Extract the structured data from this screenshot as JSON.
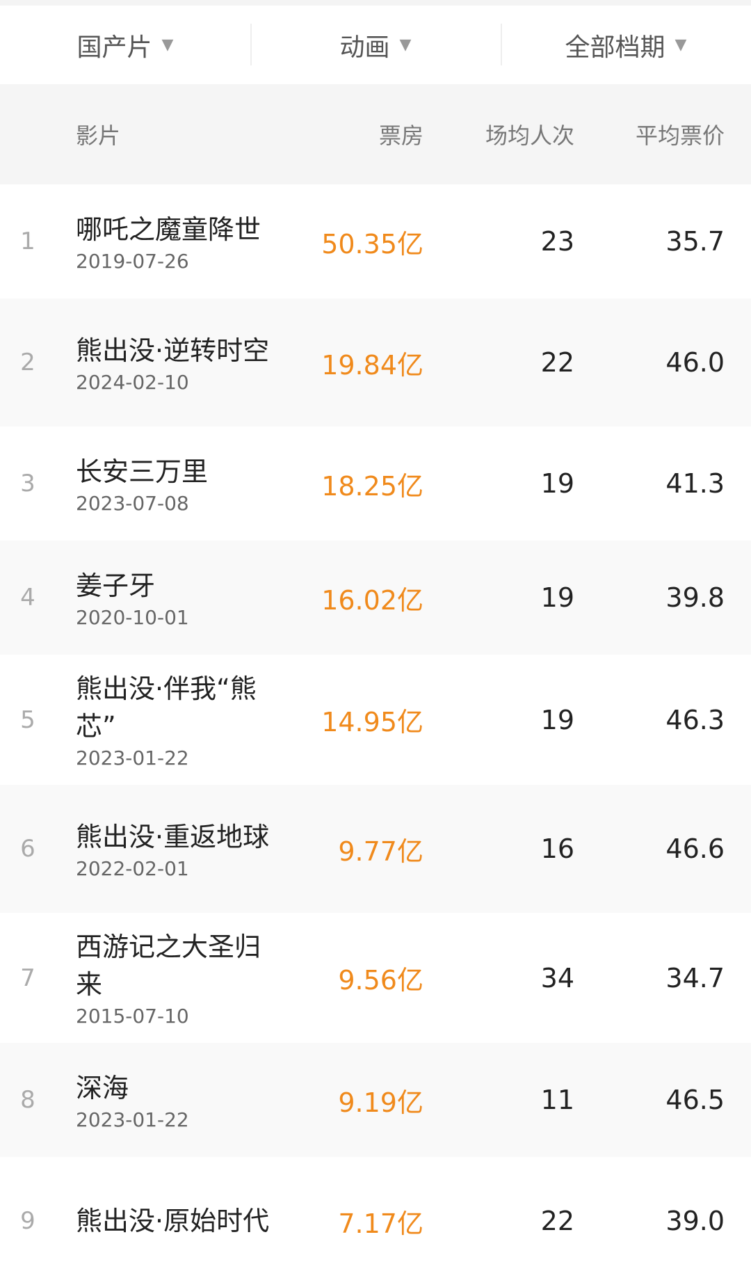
{
  "filters": [
    {
      "label": "国产片",
      "icon": "triangle-down"
    },
    {
      "label": "动画",
      "icon": "triangle-down"
    },
    {
      "label": "全部档期",
      "icon": "triangle-down"
    }
  ],
  "dropdown_glyph": "▼",
  "columns": {
    "film": "影片",
    "box_office": "票房",
    "avg_attendance": "场均人次",
    "avg_price": "平均票价"
  },
  "colors": {
    "box_office": "#f08a1c"
  },
  "rows": [
    {
      "rank": "1",
      "name": "哪吒之魔童降世",
      "date": "2019-07-26",
      "box": "50.35亿",
      "avg": "23",
      "price": "35.7"
    },
    {
      "rank": "2",
      "name": "熊出没·逆转时空",
      "date": "2024-02-10",
      "box": "19.84亿",
      "avg": "22",
      "price": "46.0"
    },
    {
      "rank": "3",
      "name": "长安三万里",
      "date": "2023-07-08",
      "box": "18.25亿",
      "avg": "19",
      "price": "41.3"
    },
    {
      "rank": "4",
      "name": "姜子牙",
      "date": "2020-10-01",
      "box": "16.02亿",
      "avg": "19",
      "price": "39.8"
    },
    {
      "rank": "5",
      "name": "熊出没·伴我“熊芯”",
      "date": "2023-01-22",
      "box": "14.95亿",
      "avg": "19",
      "price": "46.3"
    },
    {
      "rank": "6",
      "name": "熊出没·重返地球",
      "date": "2022-02-01",
      "box": "9.77亿",
      "avg": "16",
      "price": "46.6"
    },
    {
      "rank": "7",
      "name": "西游记之大圣归来",
      "date": "2015-07-10",
      "box": "9.56亿",
      "avg": "34",
      "price": "34.7"
    },
    {
      "rank": "8",
      "name": "深海",
      "date": "2023-01-22",
      "box": "9.19亿",
      "avg": "11",
      "price": "46.5"
    },
    {
      "rank": "9",
      "name": "熊出没·原始时代",
      "box": "7.17亿",
      "avg": "22",
      "price": "39.0"
    }
  ]
}
